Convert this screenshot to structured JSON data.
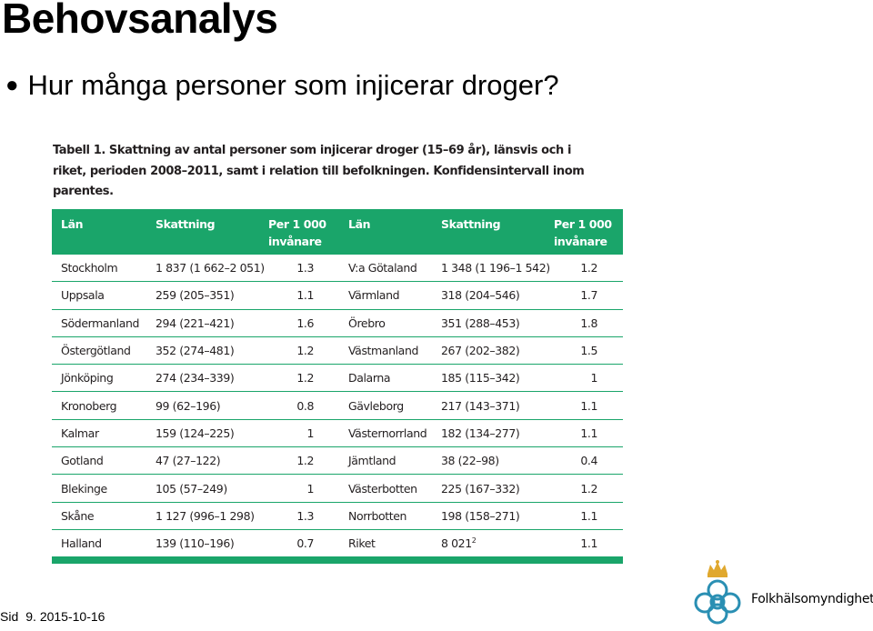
{
  "slide": {
    "title": "Behovsanalys",
    "bullet": "Hur många personer som injicerar droger?"
  },
  "caption": {
    "label": "Tabell 1.",
    "text": "Skattning av antal personer som injicerar droger (15–69 år), länsvis och i riket, perioden 2008–2011, samt i relation till befolkningen. Konfidensintervall inom parentes."
  },
  "table": {
    "headers": [
      "Län",
      "Skattning",
      "Per 1 000 invånare",
      "Län",
      "Skattning",
      "Per 1 000 invånare"
    ],
    "rows": [
      [
        "Stockholm",
        "1 837 (1 662–2 051)",
        "1.3",
        "V:a Götaland",
        "1 348 (1 196–1 542)",
        "1.2"
      ],
      [
        "Uppsala",
        "259 (205–351)",
        "1.1",
        "Värmland",
        "318 (204–546)",
        "1.7"
      ],
      [
        "Södermanland",
        "294 (221–421)",
        "1.6",
        "Örebro",
        "351 (288–453)",
        "1.8"
      ],
      [
        "Östergötland",
        "352 (274–481)",
        "1.2",
        "Västmanland",
        "267 (202–382)",
        "1.5"
      ],
      [
        "Jönköping",
        "274 (234–339)",
        "1.2",
        "Dalarna",
        "185 (115–342)",
        "1"
      ],
      [
        "Kronoberg",
        "99 (62–196)",
        "0.8",
        "Gävleborg",
        "217 (143–371)",
        "1.1"
      ],
      [
        "Kalmar",
        "159 (124–225)",
        "1",
        "Västernorrland",
        "182 (134–277)",
        "1.1"
      ],
      [
        "Gotland",
        "47 (27–122)",
        "1.2",
        "Jämtland",
        "38 (22–98)",
        "0.4"
      ],
      [
        "Blekinge",
        "105 (57–249)",
        "1",
        "Västerbotten",
        "225 (167–332)",
        "1.2"
      ],
      [
        "Skåne",
        "1 127 (996–1 298)",
        "1.3",
        "Norrbotten",
        "198 (158–271)",
        "1.1"
      ],
      [
        "Halland",
        "139 (110–196)",
        "0.7",
        "Riket",
        "8 021",
        "1.1"
      ]
    ],
    "footnote_marker": "2"
  },
  "footer": {
    "sid_label": "Sid",
    "page_number": "9",
    "date": "2015-10-16"
  },
  "logo": {
    "text": "Folkhälsomyndigheten",
    "colors": {
      "crown": "#e0a82e",
      "knot": "#2a8fb3"
    }
  },
  "colors": {
    "table_accent": "#1aa56a",
    "text": "#231f20"
  }
}
